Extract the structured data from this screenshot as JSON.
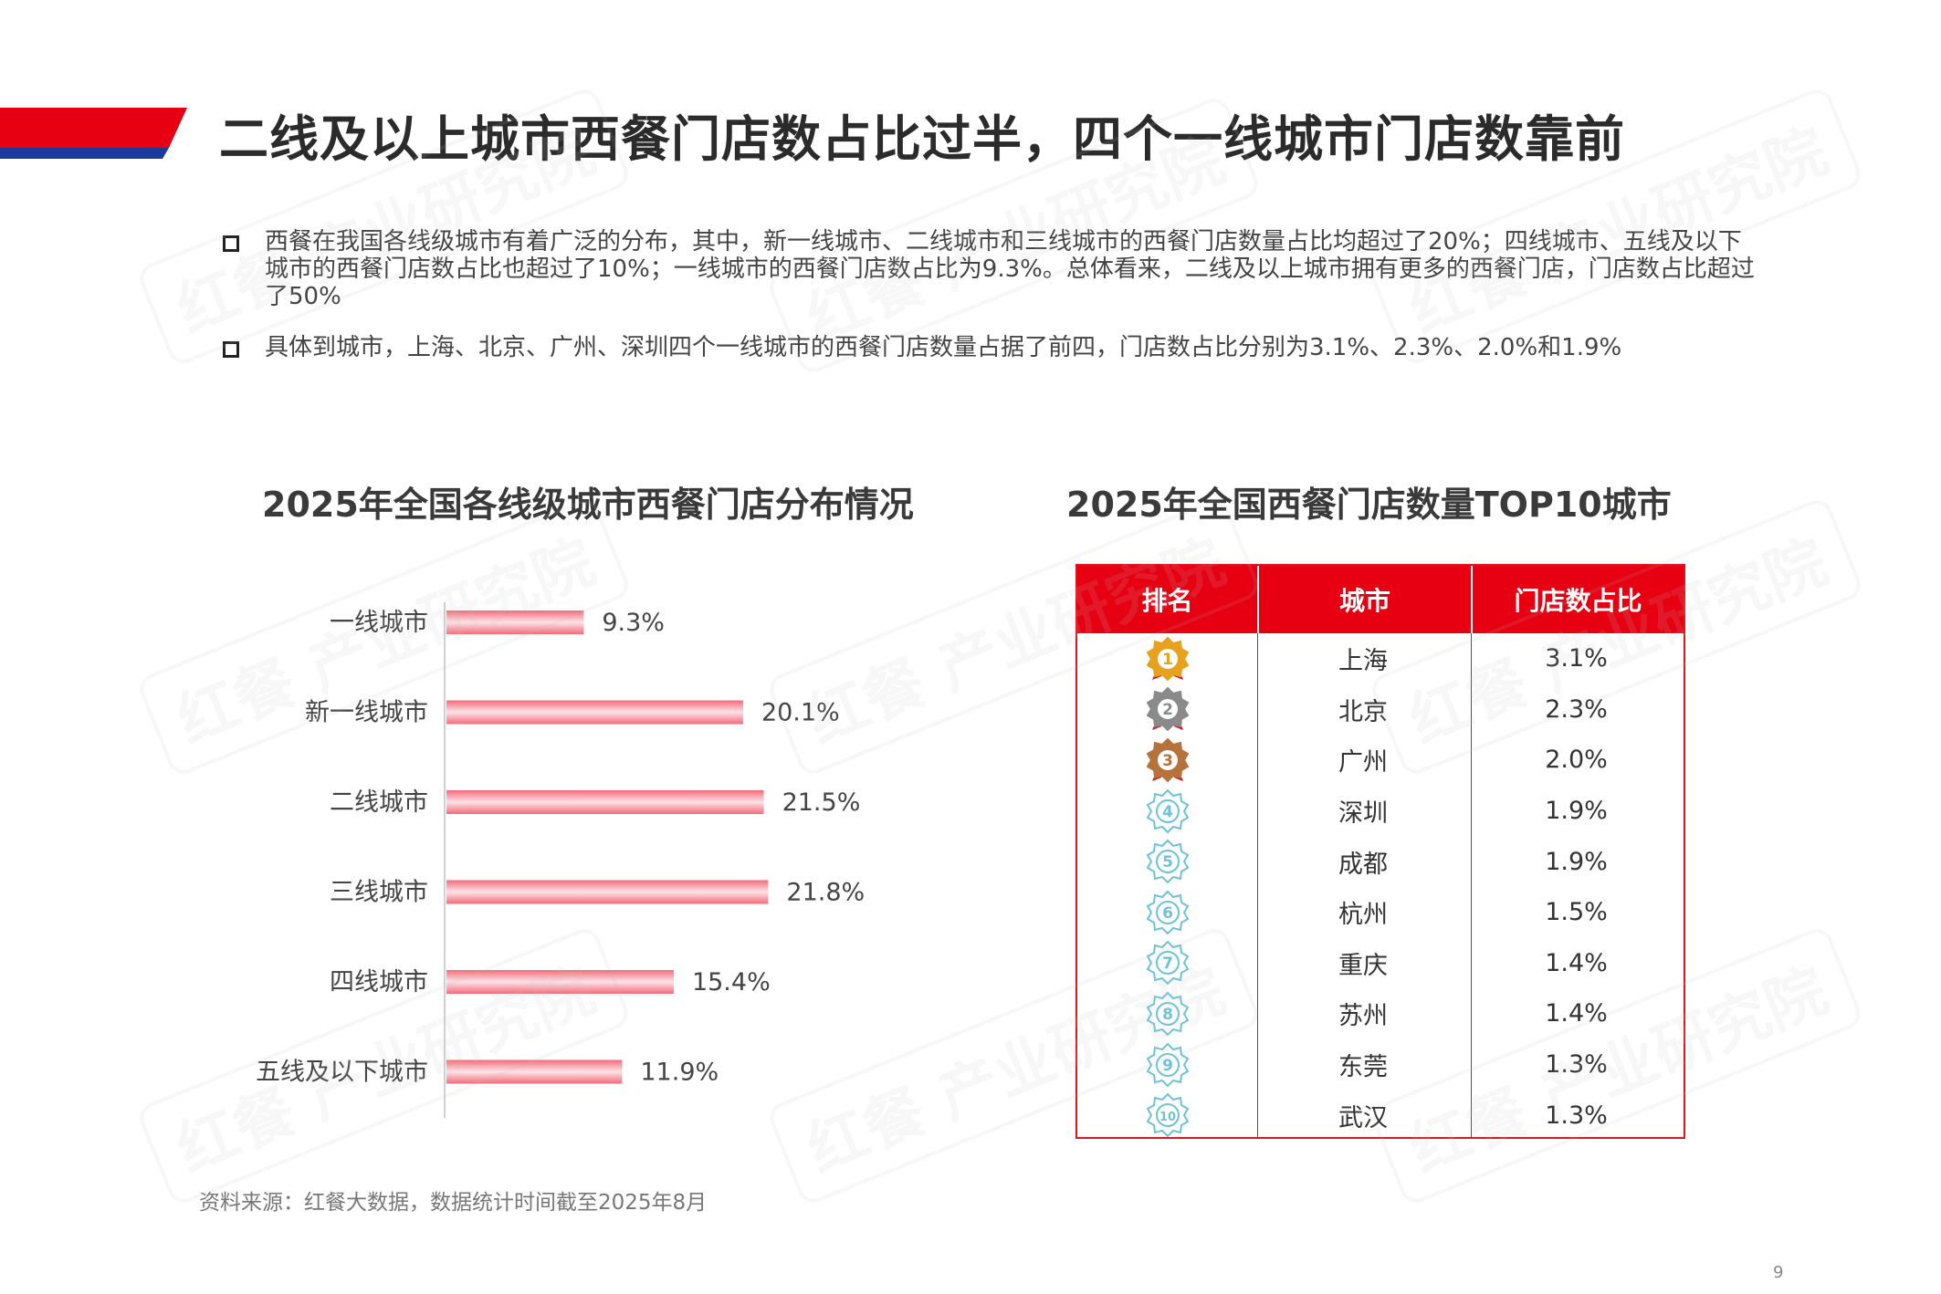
{
  "page": {
    "title": "二线及以上城市西餐门店数占比过半，四个一线城市门店数靠前",
    "bullets": [
      "西餐在我国各线级城市有着广泛的分布，其中，新一线城市、二线城市和三线城市的西餐门店数量占比均超过了20%；四线城市、五线及以下城市的西餐门店数占比也超过了10%；一线城市的西餐门店数占比为9.3%。总体看来，二线及以上城市拥有更多的西餐门店，门店数占比超过了50%",
      "具体到城市，上海、北京、广州、深圳四个一线城市的西餐门店数量占据了前四，门店数占比分别为3.1%、2.3%、2.0%和1.9%"
    ],
    "source": "资料来源：红餐大数据，数据统计时间截至2025年8月",
    "page_number": "9",
    "watermark": "红餐 产业研究院",
    "colors": {
      "accent": "#e60012",
      "navy": "#1a3a9c",
      "bar": "#f26b7a"
    }
  },
  "chart_data": [
    {
      "type": "bar",
      "orientation": "horizontal",
      "title": "2025年全国各线级城市西餐门店分布情况",
      "categories": [
        "一线城市",
        "新一线城市",
        "二线城市",
        "三线城市",
        "四线城市",
        "五线及以下城市"
      ],
      "values": [
        9.3,
        20.1,
        21.5,
        21.8,
        15.4,
        11.9
      ],
      "value_labels": [
        "9.3%",
        "20.1%",
        "21.5%",
        "21.8%",
        "15.4%",
        "11.9%"
      ],
      "unit": "%",
      "xlim": [
        0,
        30
      ],
      "grid": false,
      "legend": "none"
    },
    {
      "type": "table",
      "title": "2025年全国西餐门店数量TOP10城市",
      "columns": [
        "排名",
        "城市",
        "门店数占比"
      ],
      "rows": [
        {
          "rank": "1",
          "city": "上海",
          "share": "3.1%"
        },
        {
          "rank": "2",
          "city": "北京",
          "share": "2.3%"
        },
        {
          "rank": "3",
          "city": "广州",
          "share": "2.0%"
        },
        {
          "rank": "4",
          "city": "深圳",
          "share": "1.9%"
        },
        {
          "rank": "5",
          "city": "成都",
          "share": "1.9%"
        },
        {
          "rank": "6",
          "city": "杭州",
          "share": "1.5%"
        },
        {
          "rank": "7",
          "city": "重庆",
          "share": "1.4%"
        },
        {
          "rank": "8",
          "city": "苏州",
          "share": "1.4%"
        },
        {
          "rank": "9",
          "city": "东莞",
          "share": "1.3%"
        },
        {
          "rank": "10",
          "city": "武汉",
          "share": "1.3%"
        }
      ],
      "medal_colors": [
        "#e6a21f",
        "#8a8a8a",
        "#b5723b",
        "#6cc3d8",
        "#6cc3d8",
        "#6cc3d8",
        "#6cc3d8",
        "#6cc3d8",
        "#6cc3d8",
        "#6cc3d8"
      ]
    }
  ]
}
